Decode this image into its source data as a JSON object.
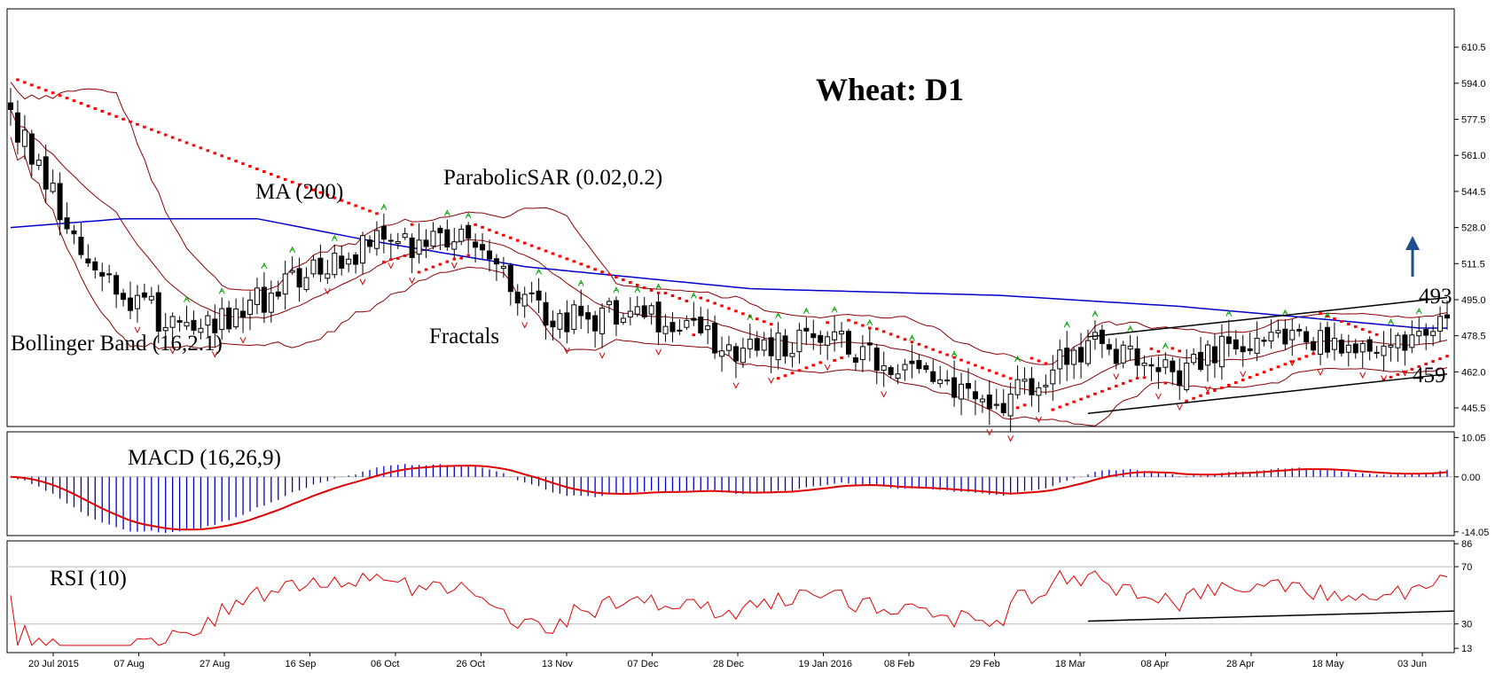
{
  "title": "Wheat: D1",
  "colors": {
    "candle": "#000000",
    "ma": "#0000cc",
    "bollinger": "#8b0000",
    "sar": "#ff0000",
    "fractal_up": "#00a000",
    "fractal_down": "#cc0000",
    "macd_hist": "#0000cc",
    "macd_signal": "#e00000",
    "rsi": "#e00000",
    "trendline": "#000000",
    "arrow": "#1f4e8c"
  },
  "annotations": {
    "ma": "MA (200)",
    "sar": "ParabolicSAR (0.02,0.2)",
    "fractals": "Fractals",
    "bollinger": "Bollinger Band (16,2.1)",
    "macd": "MACD (16,26,9)",
    "rsi": "RSI (10)",
    "resistance": "493",
    "support": "459"
  },
  "chart_data": [
    {
      "type": "candlestick",
      "title": "Wheat: D1",
      "y_ticks": [
        "610.5",
        "594.0",
        "577.5",
        "561.0",
        "544.5",
        "528.0",
        "511.5",
        "495.0",
        "478.5",
        "462.0",
        "445.5"
      ],
      "ylim": [
        437.0,
        628.0
      ],
      "x_ticks": [
        "20 Jul 2015",
        "07 Aug",
        "27 Aug",
        "16 Sep",
        "06 Oct",
        "26 Oct",
        "13 Nov",
        "07 Dec",
        "28 Dec",
        "19 Jan 2016",
        "08 Feb",
        "29 Feb",
        "18 Mar",
        "08 Apr",
        "28 Apr",
        "18 May",
        "03 Jun"
      ],
      "close_key": [
        [
          "20 Jul 2015",
          578
        ],
        [
          "07 Aug",
          505
        ],
        [
          "27 Aug",
          478
        ],
        [
          "16 Sep",
          500
        ],
        [
          "06 Oct",
          520
        ],
        [
          "26 Oct",
          522
        ],
        [
          "13 Nov",
          485
        ],
        [
          "07 Dec",
          490
        ],
        [
          "28 Dec",
          473
        ],
        [
          "19 Jan 2016",
          478
        ],
        [
          "08 Feb",
          465
        ],
        [
          "29 Feb",
          448
        ],
        [
          "18 Mar",
          475
        ],
        [
          "08 Apr",
          462
        ],
        [
          "28 Apr",
          482
        ],
        [
          "18 May",
          470
        ],
        [
          "last",
          482
        ]
      ],
      "ma200_key": [
        [
          0,
          528
        ],
        [
          50,
          532
        ],
        [
          110,
          532
        ],
        [
          160,
          522
        ],
        [
          230,
          510
        ],
        [
          330,
          500
        ],
        [
          440,
          497
        ],
        [
          520,
          492
        ],
        [
          575,
          487
        ],
        [
          628,
          482
        ]
      ],
      "resistance_line": {
        "label": "493",
        "from": [
          480,
          478
        ],
        "to": [
          640,
          496
        ]
      },
      "support_line": {
        "label": "459",
        "from": [
          480,
          443
        ],
        "to": [
          640,
          461
        ]
      }
    },
    {
      "type": "bar",
      "name": "MACD (16,26,9)",
      "y_ticks": [
        "10.05",
        "0.00",
        "-14.05"
      ],
      "ylim": [
        -15.0,
        11.5
      ]
    },
    {
      "type": "line",
      "name": "RSI (10)",
      "y_ticks": [
        "86",
        "70",
        "30",
        "13"
      ],
      "ylim": [
        10,
        88
      ]
    }
  ]
}
